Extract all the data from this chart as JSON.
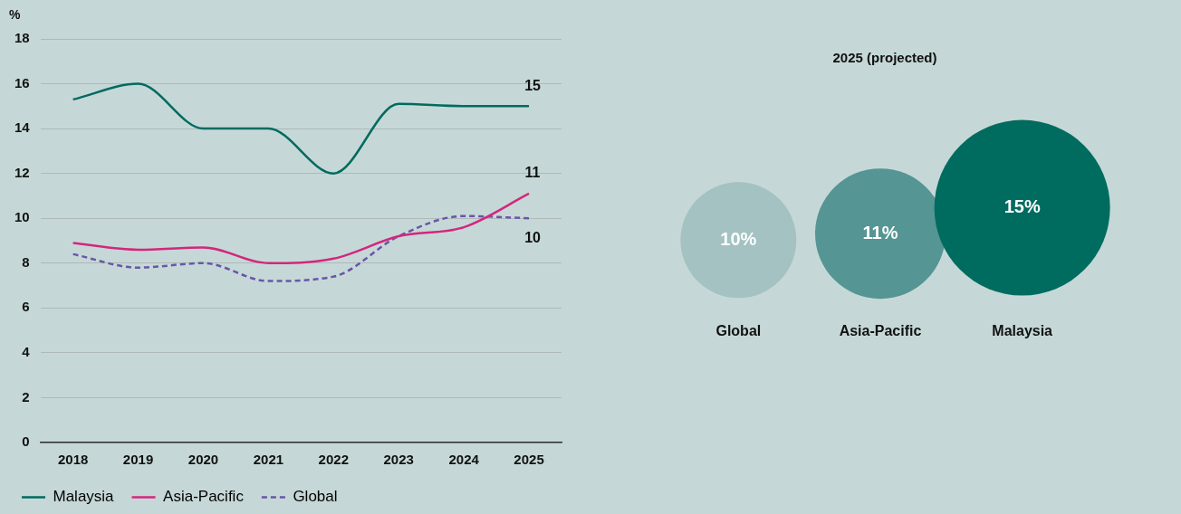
{
  "chart_data": [
    {
      "type": "line",
      "ylabel": "%",
      "categories": [
        "2018",
        "2019",
        "2020",
        "2021",
        "2022",
        "2023",
        "2024",
        "2025"
      ],
      "ylim": [
        0,
        18
      ],
      "yticks": [
        0,
        2,
        4,
        6,
        8,
        10,
        12,
        14,
        16,
        18
      ],
      "grid": "y",
      "legend": "bottom",
      "marker": "none",
      "series": [
        {
          "name": "Malaysia",
          "color": "#006b5f",
          "values": [
            15.3,
            16,
            14,
            14,
            12,
            15.1,
            15,
            15
          ],
          "value_labels": [
            null,
            null,
            null,
            null,
            null,
            null,
            null,
            "15"
          ]
        },
        {
          "name": "Asia-Pacific",
          "color": "#d4267e",
          "values": [
            8.9,
            8.6,
            8.7,
            8.0,
            8.2,
            9.2,
            9.6,
            11.1
          ],
          "value_labels": [
            null,
            null,
            null,
            null,
            null,
            null,
            null,
            "11"
          ]
        },
        {
          "name": "Global",
          "color": "#6a55a8",
          "line_style": "dashed",
          "values": [
            8.4,
            7.8,
            8.0,
            7.2,
            7.4,
            9.2,
            10.1,
            10.0
          ],
          "value_labels": [
            null,
            null,
            null,
            null,
            null,
            null,
            null,
            "10"
          ]
        }
      ]
    },
    {
      "type": "bubble",
      "title": "2025 (projected)",
      "categories": [
        "Global",
        "Asia-Pacific",
        "Malaysia"
      ],
      "values": [
        10,
        11,
        15
      ],
      "sizes": [
        0.435,
        0.551,
        1
      ],
      "colors": [
        "#a3c2c1",
        "#559593",
        "#006b5f"
      ],
      "value_labels": [
        "10%",
        "11%",
        "15%"
      ],
      "tick_labels": "x"
    }
  ]
}
